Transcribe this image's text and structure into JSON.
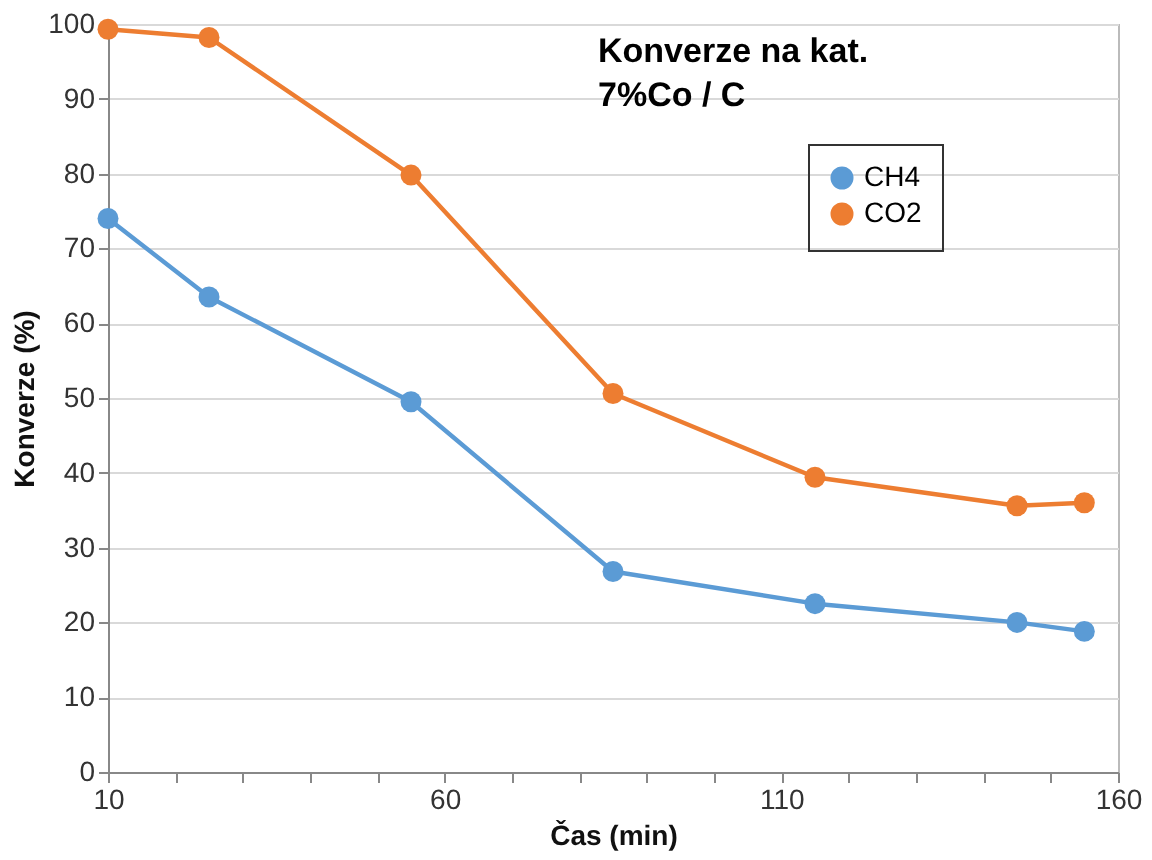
{
  "chart_data": {
    "type": "line",
    "title": "Konverze na kat.\n7%Co / C",
    "xlabel": "Čas (min)",
    "ylabel": "Konverze (%)",
    "x": [
      10,
      25,
      55,
      85,
      115,
      145,
      155
    ],
    "series": [
      {
        "name": "CH4",
        "color": "#5b9bd5",
        "values": [
          74,
          63.5,
          49.5,
          26.8,
          22.5,
          20,
          18.8
        ]
      },
      {
        "name": "CO2",
        "color": "#ed7d31",
        "values": [
          99.3,
          98.2,
          79.8,
          50.6,
          39.4,
          35.6,
          36
        ]
      }
    ],
    "xlim": [
      10,
      160
    ],
    "xticks": [
      10,
      {
        "value": 20,
        "label": null
      },
      {
        "value": 30,
        "label": null
      },
      {
        "value": 40,
        "label": null
      },
      {
        "value": 50,
        "label": null
      },
      60,
      {
        "value": 70,
        "label": null
      },
      {
        "value": 80,
        "label": null
      },
      {
        "value": 90,
        "label": null
      },
      {
        "value": 100,
        "label": null
      },
      110,
      {
        "value": 120,
        "label": null
      },
      {
        "value": 130,
        "label": null
      },
      {
        "value": 140,
        "label": null
      },
      {
        "value": 150,
        "label": null
      },
      160
    ],
    "ylim": [
      0,
      100
    ],
    "yticks": [
      0,
      10,
      20,
      30,
      40,
      50,
      60,
      70,
      80,
      90,
      100
    ],
    "grid": "y",
    "legend": "top right",
    "marker": "circle",
    "line_style": "solid"
  }
}
